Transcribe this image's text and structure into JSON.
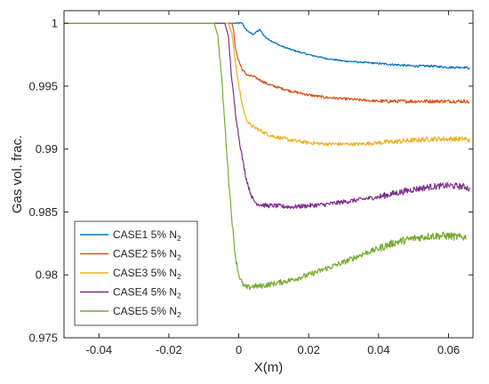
{
  "chart_data": {
    "type": "line",
    "title": "",
    "xlabel": "X(m)",
    "ylabel": "Gas vol. frac.",
    "xlim": [
      -0.05,
      0.067
    ],
    "ylim": [
      0.975,
      1.001
    ],
    "x_ticks": [
      -0.04,
      -0.02,
      0,
      0.02,
      0.04,
      0.06
    ],
    "x_tick_labels": [
      "-0.04",
      "-0.02",
      "0",
      "0.02",
      "0.04",
      "0.06"
    ],
    "y_ticks": [
      0.975,
      0.98,
      0.985,
      0.99,
      0.995,
      1
    ],
    "y_tick_labels": [
      "0.975",
      "0.98",
      "0.985",
      "0.99",
      "0.995",
      "1"
    ],
    "grid": false,
    "legend_position": "bottom-left",
    "series": [
      {
        "name": "CASE1 5% N2",
        "label_main": "CASE1 5% N",
        "label_sub": "2",
        "color": "#0072BD",
        "x": [
          -0.05,
          -0.002,
          -0.0005,
          0.001,
          0.002,
          0.003,
          0.004,
          0.005,
          0.006,
          0.007,
          0.008,
          0.01,
          0.012,
          0.015,
          0.02,
          0.025,
          0.03,
          0.035,
          0.04,
          0.045,
          0.05,
          0.055,
          0.06,
          0.065,
          0.066
        ],
        "y": [
          1,
          1,
          1,
          1,
          0.9995,
          0.9993,
          0.9991,
          0.9993,
          0.9995,
          0.9991,
          0.9988,
          0.9985,
          0.9982,
          0.9979,
          0.9975,
          0.9972,
          0.997,
          0.9969,
          0.9968,
          0.9967,
          0.9966,
          0.9966,
          0.9965,
          0.9965,
          0.9964
        ]
      },
      {
        "name": "CASE2 5% N2",
        "label_main": "CASE2 5% N",
        "label_sub": "2",
        "color": "#D95319",
        "x": [
          -0.05,
          -0.002,
          -0.0015,
          -0.001,
          0,
          0.001,
          0.002,
          0.003,
          0.004,
          0.006,
          0.008,
          0.01,
          0.015,
          0.02,
          0.025,
          0.03,
          0.035,
          0.04,
          0.045,
          0.05,
          0.055,
          0.06,
          0.065,
          0.066
        ],
        "y": [
          1,
          1,
          0.9995,
          0.998,
          0.997,
          0.9963,
          0.996,
          0.9958,
          0.9958,
          0.9955,
          0.9952,
          0.995,
          0.9946,
          0.9943,
          0.9941,
          0.994,
          0.9939,
          0.9938,
          0.9938,
          0.9938,
          0.9938,
          0.9938,
          0.9938,
          0.9937
        ]
      },
      {
        "name": "CASE3 5% N2",
        "label_main": "CASE3 5% N",
        "label_sub": "2",
        "color": "#EDB120",
        "x": [
          -0.05,
          -0.003,
          -0.002,
          -0.001,
          0,
          0.001,
          0.002,
          0.003,
          0.004,
          0.006,
          0.008,
          0.01,
          0.015,
          0.02,
          0.025,
          0.03,
          0.035,
          0.04,
          0.045,
          0.05,
          0.055,
          0.06,
          0.065,
          0.066
        ],
        "y": [
          1,
          1,
          0.9992,
          0.997,
          0.995,
          0.9935,
          0.9925,
          0.992,
          0.9918,
          0.9915,
          0.9912,
          0.991,
          0.9907,
          0.9905,
          0.9904,
          0.9904,
          0.9904,
          0.9905,
          0.9906,
          0.9907,
          0.9908,
          0.9908,
          0.9908,
          0.9907
        ]
      },
      {
        "name": "CASE4 5% N2",
        "label_main": "CASE4 5% N",
        "label_sub": "2",
        "color": "#7E2F8E",
        "x": [
          -0.05,
          -0.004,
          -0.003,
          -0.002,
          -0.001,
          0,
          0.001,
          0.002,
          0.003,
          0.004,
          0.005,
          0.006,
          0.008,
          0.01,
          0.015,
          0.02,
          0.025,
          0.03,
          0.035,
          0.04,
          0.045,
          0.05,
          0.055,
          0.06,
          0.065,
          0.066
        ],
        "y": [
          1,
          1,
          0.999,
          0.9955,
          0.993,
          0.991,
          0.9893,
          0.9878,
          0.9868,
          0.986,
          0.9857,
          0.9856,
          0.9855,
          0.9855,
          0.9854,
          0.9855,
          0.9856,
          0.9858,
          0.986,
          0.9862,
          0.9865,
          0.9868,
          0.987,
          0.9871,
          0.987,
          0.9868
        ]
      },
      {
        "name": "CASE5 5% N2",
        "label_main": "CASE5 5% N",
        "label_sub": "2",
        "color": "#77AC30",
        "x": [
          -0.05,
          -0.007,
          -0.006,
          -0.005,
          -0.004,
          -0.003,
          -0.002,
          -0.001,
          0,
          0.001,
          0.002,
          0.003,
          0.004,
          0.006,
          0.008,
          0.01,
          0.015,
          0.02,
          0.025,
          0.03,
          0.035,
          0.04,
          0.045,
          0.05,
          0.055,
          0.06,
          0.063,
          0.065
        ],
        "y": [
          1,
          1,
          0.999,
          0.996,
          0.992,
          0.988,
          0.9845,
          0.9815,
          0.98,
          0.9793,
          0.979,
          0.979,
          0.9791,
          0.9791,
          0.9792,
          0.9793,
          0.9796,
          0.98,
          0.9805,
          0.981,
          0.9816,
          0.9821,
          0.9826,
          0.9829,
          0.9831,
          0.9831,
          0.983,
          0.983
        ]
      }
    ]
  }
}
